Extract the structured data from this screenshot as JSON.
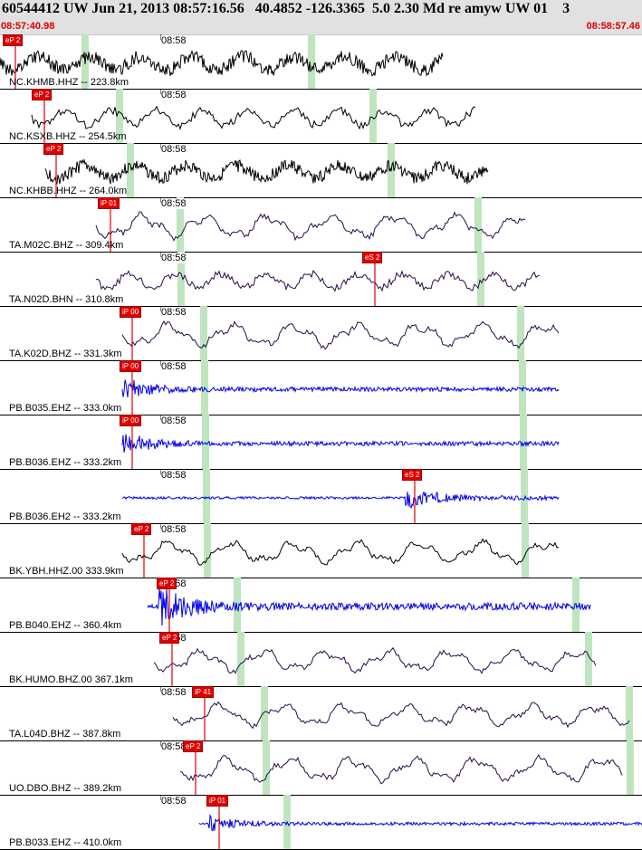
{
  "header": {
    "title": "60544412 UW Jun 21, 2013 08:57:16.56   40.4852 -126.3365  5.0 2.30 Md re amyw UW 01    3",
    "start_time": "08:57:40.98",
    "end_time": "08:58:57.46"
  },
  "colors": {
    "broadband": "#000000",
    "ta": "#2a0a4a",
    "pb": "#0000ee",
    "pick": "#e00000",
    "window": "#bfe5bf"
  },
  "traces": [
    {
      "label": "NC.KHMB.HHZ -- 223.8km",
      "tick": "08:58",
      "pick": "eP 2",
      "style": "black",
      "start": 0.0,
      "end": 0.69,
      "amp": 0.55,
      "freq": "high"
    },
    {
      "label": "NC.KSXB.HHZ -- 254.5km",
      "tick": "08:58",
      "pick": "eP 2",
      "style": "black",
      "start": 0.05,
      "end": 0.74,
      "amp": 0.5,
      "freq": "med"
    },
    {
      "label": "NC.KHBB.HHZ -- 264.0km",
      "tick": "08:58",
      "pick": "eP 2",
      "style": "black",
      "start": 0.07,
      "end": 0.76,
      "amp": 0.5,
      "freq": "high"
    },
    {
      "label": "TA.M02C.BHZ -- 309.4km",
      "tick": "08:58",
      "pick": "iP 01",
      "style": "purple",
      "start": 0.15,
      "end": 0.82,
      "amp": 0.55,
      "freq": "low"
    },
    {
      "label": "TA.N02D.BHN -- 310.8km",
      "tick": "08:58",
      "pick": "eS 2",
      "style": "purple",
      "start": 0.15,
      "end": 0.84,
      "amp": 0.45,
      "freq": "med"
    },
    {
      "label": "TA.K02D.BHZ -- 331.3km",
      "tick": "08:58",
      "pick": "iP 00",
      "style": "purple",
      "start": 0.19,
      "end": 0.87,
      "amp": 0.55,
      "freq": "low"
    },
    {
      "label": "PB.B035.EHZ -- 333.0km",
      "tick": "08:58",
      "pick": "iP 00",
      "style": "blue",
      "start": 0.19,
      "end": 0.87,
      "amp": 0.35,
      "freq": "noise"
    },
    {
      "label": "PB.B036.EHZ -- 333.2km",
      "tick": "08:58",
      "pick": "iP 00",
      "style": "blue",
      "start": 0.19,
      "end": 0.87,
      "amp": 0.35,
      "freq": "noise"
    },
    {
      "label": "PB.B036.EH2 -- 333.2km",
      "tick": "08:58",
      "pick": "eS 2",
      "style": "blue",
      "start": 0.19,
      "end": 0.87,
      "amp": 0.35,
      "freq": "noise"
    },
    {
      "label": "BK.YBH.HHZ.00 333.9km",
      "tick": "08:58",
      "pick": "eP 2",
      "style": "black",
      "start": 0.19,
      "end": 0.87,
      "amp": 0.5,
      "freq": "low"
    },
    {
      "label": "PB.B040.EHZ -- 360.4km",
      "tick": "08:58",
      "pick": "eP 2",
      "style": "blue",
      "start": 0.23,
      "end": 0.92,
      "amp": 0.6,
      "freq": "noise"
    },
    {
      "label": "BK.HUMO.BHZ.00 367.1km",
      "tick": "08:58",
      "pick": "eP 2",
      "style": "purple",
      "start": 0.24,
      "end": 0.93,
      "amp": 0.5,
      "freq": "low"
    },
    {
      "label": "TA.L04D.BHZ -- 387.8km",
      "tick": "08:58",
      "pick": "iP 41",
      "style": "purple",
      "start": 0.27,
      "end": 0.98,
      "amp": 0.5,
      "freq": "low"
    },
    {
      "label": "UO.DBO.BHZ -- 389.2km",
      "tick": "08:58",
      "pick": "eP 2",
      "style": "purple",
      "start": 0.28,
      "end": 0.97,
      "amp": 0.55,
      "freq": "low"
    },
    {
      "label": "PB.B033.EHZ -- 410.0km",
      "tick": "08:58",
      "pick": "iP 01",
      "style": "blue",
      "start": 0.31,
      "end": 1.0,
      "amp": 0.25,
      "freq": "noise"
    }
  ]
}
